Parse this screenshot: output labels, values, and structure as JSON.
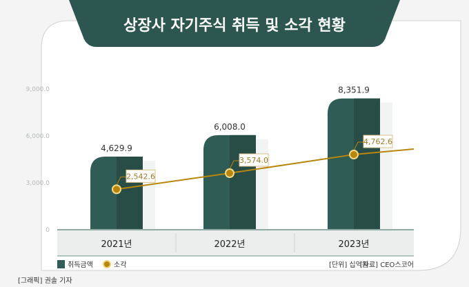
{
  "title": "상장사 자기주식 취득 및 소각 현황",
  "chart_data": {
    "type": "bar",
    "title": "상장사 자기주식 취득 및 소각 현황",
    "categories": [
      "2021년",
      "2022년",
      "2023년"
    ],
    "series": [
      {
        "name": "취득금액",
        "type": "bar",
        "values": [
          4629.9,
          6008.0,
          8351.9
        ],
        "labels": [
          "4,629.9",
          "6,008.0",
          "8,351.9"
        ]
      },
      {
        "name": "소각",
        "type": "line",
        "values": [
          2542.6,
          3574.0,
          4762.6
        ],
        "labels": [
          "2,542.6",
          "3,574.0",
          "4,762.6"
        ]
      }
    ],
    "yticks": [
      0,
      3000,
      6000,
      9000
    ],
    "ytick_labels": [
      "0",
      "3,000.0",
      "6,000.0",
      "9,000.0"
    ],
    "ylim": [
      0,
      9000
    ],
    "grid": false,
    "legend_position": "bottom-left"
  },
  "colors": {
    "bar": "#2f5c55",
    "bar_dark": "#284d47",
    "line": "#b8860b",
    "title_bg": "#2c564f"
  },
  "footer": {
    "unit": "[단위] 십억원",
    "source": "[자료] CEO스코어",
    "credit": "[그래픽] 권솔 기자"
  }
}
